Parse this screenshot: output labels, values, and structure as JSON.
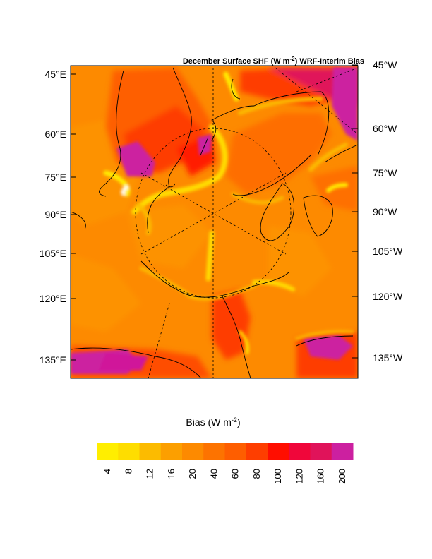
{
  "map": {
    "title_prefix": "December Surface SHF (W m",
    "title_exp": "-2",
    "title_suffix": ") WRF-Interim Bias",
    "left_labels": [
      "45°E",
      "60°E",
      "75°E",
      "90°E",
      "105°E",
      "120°E",
      "135°E"
    ],
    "right_labels": [
      "45°W",
      "60°W",
      "75°W",
      "90°W",
      "105°W",
      "120°W",
      "135°W"
    ]
  },
  "colorbar": {
    "label_prefix": "Bias (W m",
    "label_exp": "-2",
    "label_suffix": ")",
    "ticks": [
      "4",
      "8",
      "12",
      "16",
      "20",
      "40",
      "60",
      "80",
      "100",
      "120",
      "160",
      "200"
    ],
    "colors": [
      "#ffee00",
      "#fedd00",
      "#fcbb00",
      "#fc9f00",
      "#fd8a00",
      "#fd7300",
      "#fe5e00",
      "#fe3e00",
      "#ff0e00",
      "#f0063a",
      "#e0135a",
      "#cc20a0"
    ]
  },
  "palette": {
    "background_field": "#fd8a00",
    "coast": "#000000"
  }
}
